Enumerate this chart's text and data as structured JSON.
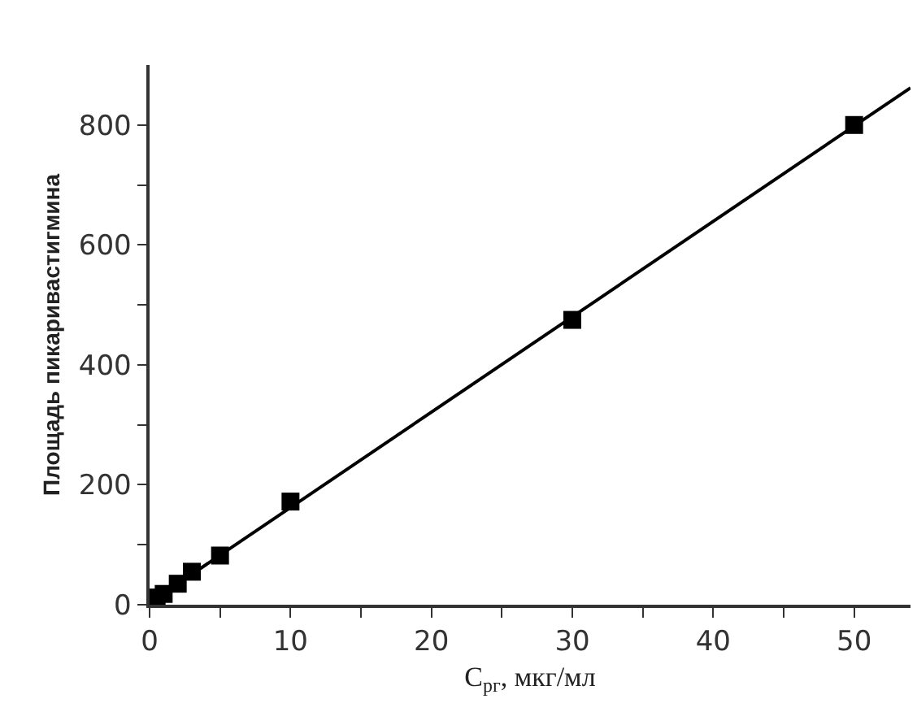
{
  "chart_data": {
    "type": "scatter",
    "xlabel": "C$_{рг}$, мкг/мл",
    "ylabel": "Площадь пикаривастигмина",
    "grid": false,
    "xlim": [
      0,
      54
    ],
    "ylim": [
      0,
      900
    ],
    "xticks": [
      0,
      {
        "value": 5,
        "label": null
      },
      10,
      {
        "value": 15,
        "label": null
      },
      20,
      {
        "value": 25,
        "label": null
      },
      30,
      {
        "value": 35,
        "label": null
      },
      40,
      {
        "value": 45,
        "label": null
      },
      50
    ],
    "yticks": [
      0,
      {
        "value": 100,
        "label": null
      },
      200,
      {
        "value": 300,
        "label": null
      },
      400,
      {
        "value": 500,
        "label": null
      },
      600,
      {
        "value": 700,
        "label": null
      },
      800
    ],
    "series": [
      {
        "marker": "square",
        "color": "#000000",
        "x": [
          0.5,
          1,
          2,
          3,
          5,
          10,
          30,
          50
        ],
        "values": [
          12,
          18,
          35,
          55,
          82,
          172,
          475,
          800
        ]
      },
      {
        "type": "line",
        "marker": "none",
        "color": "#000000",
        "x": [
          0,
          54
        ],
        "values": [
          3,
          862
        ]
      }
    ]
  }
}
